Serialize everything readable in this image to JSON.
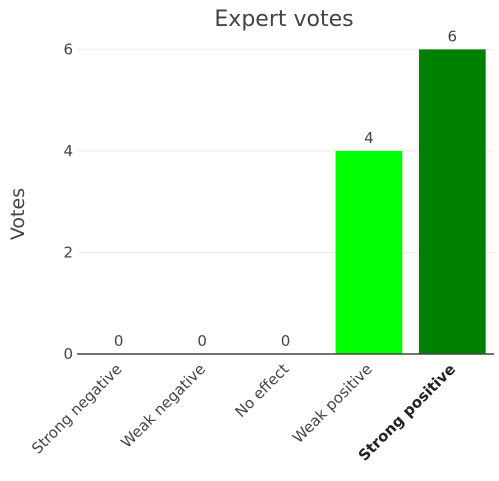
{
  "chart_data": {
    "type": "bar",
    "title": "Expert votes",
    "xlabel": "",
    "ylabel": "Votes",
    "categories": [
      "Strong negative",
      "Weak negative",
      "No effect",
      "Weak positive",
      "Strong positive"
    ],
    "values": [
      0,
      0,
      0,
      4,
      6
    ],
    "data_labels": [
      "0",
      "0",
      "0",
      "4",
      "6"
    ],
    "bar_colors": [
      "#00ff00",
      "#00ff00",
      "#00ff00",
      "#00ff00",
      "#008000"
    ],
    "highlighted_category": "Strong positive",
    "ylim": [
      0,
      6.5
    ],
    "yticks": [
      0,
      2,
      4,
      6
    ],
    "ytick_labels": [
      "0",
      "2",
      "4",
      "6"
    ],
    "grid": true,
    "legend": "none"
  }
}
